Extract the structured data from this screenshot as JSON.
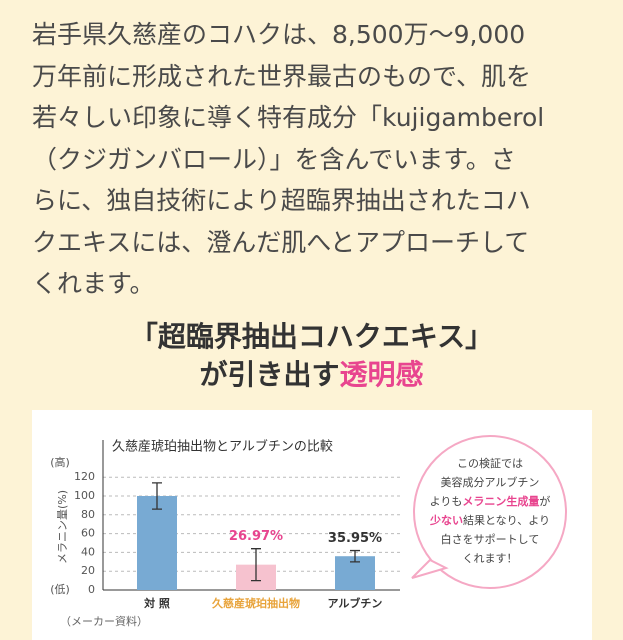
{
  "paragraph": {
    "lines": [
      "岩手県久慈産のコハクは、8,500万〜9,000",
      "万年前に形成された世界最古のもので、肌を",
      "若々しい印象に導く特有成分「kujigamberol",
      "（クジガンバロール）」を含んでいます。さ",
      "らに、独自技術により超臨界抽出されたコハ",
      "クエキスには、澄んだ肌へとアプローチして",
      "くれます。"
    ]
  },
  "heading": {
    "line1": "「超臨界抽出コハクエキス」",
    "line2": "が引き出す",
    "highlight": "透明感"
  },
  "chart_data": {
    "type": "bar",
    "title": "久慈産琥珀抽出物とアルブチンの比較",
    "y_label": "メラニン量(%)",
    "y_high": "(高)",
    "y_low": "(低)",
    "source": "（メーカー資料）",
    "categories": [
      "対 照",
      "久慈産琥珀抽出物",
      "アルブチン"
    ],
    "values": [
      100,
      26.97,
      35.95
    ],
    "errors": [
      14,
      17,
      6
    ],
    "value_labels": [
      null,
      "26.97%",
      "35.95%"
    ],
    "colors": [
      "#78aad3",
      "#f6c2cf",
      "#78aad3"
    ],
    "ylim": [
      0,
      120
    ],
    "yticks": [
      0,
      20,
      40,
      60,
      80,
      100,
      120
    ],
    "grid": true
  },
  "callout": {
    "l1": "この検証では",
    "l2": "美容成分アルブチン",
    "l3a": "よりも",
    "l3b": "メラニン生成量",
    "l3c": "が",
    "l4a": "少ない",
    "l4b": "結果となり、より",
    "l5": "白さをサポートして",
    "l6": "くれます！"
  }
}
